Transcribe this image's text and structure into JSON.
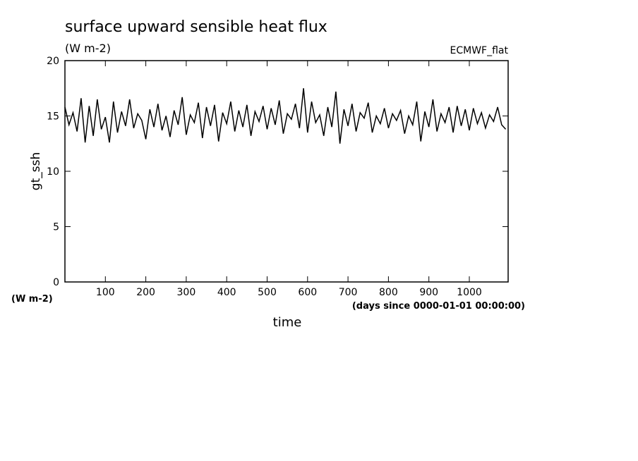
{
  "chart_data": {
    "type": "line",
    "title": "surface upward sensible heat flux",
    "subtitle": "(W m-2)",
    "annotation": "ECMWF_flat",
    "y_label": "gt_ssh",
    "y_unit": "(W m-2)",
    "x_unit": "(days since 0000-01-01 00:00:00)",
    "x_label": "time",
    "color": "#000000",
    "x": [
      0,
      10,
      20,
      30,
      40,
      50,
      60,
      70,
      80,
      90,
      100,
      110,
      120,
      130,
      140,
      150,
      160,
      170,
      180,
      190,
      200,
      210,
      220,
      230,
      240,
      250,
      260,
      270,
      280,
      290,
      300,
      310,
      320,
      330,
      340,
      350,
      360,
      370,
      380,
      390,
      400,
      410,
      420,
      430,
      440,
      450,
      460,
      470,
      480,
      490,
      500,
      510,
      520,
      530,
      540,
      550,
      560,
      570,
      580,
      590,
      600,
      610,
      620,
      630,
      640,
      650,
      660,
      670,
      680,
      690,
      700,
      710,
      720,
      730,
      740,
      750,
      760,
      770,
      780,
      790,
      800,
      810,
      820,
      830,
      840,
      850,
      860,
      870,
      880,
      890,
      900,
      910,
      920,
      930,
      940,
      950,
      960,
      970,
      980,
      990,
      1000,
      1010,
      1020,
      1030,
      1040,
      1050,
      1060,
      1070,
      1080,
      1090
    ],
    "values": [
      15.8,
      14.2,
      15.3,
      13.6,
      16.6,
      12.6,
      15.9,
      13.2,
      16.5,
      13.8,
      14.9,
      12.6,
      16.3,
      13.5,
      15.4,
      14.1,
      16.5,
      13.9,
      15.2,
      14.6,
      12.9,
      15.6,
      14.0,
      16.1,
      13.7,
      15.0,
      13.1,
      15.5,
      14.2,
      16.7,
      13.3,
      15.1,
      14.4,
      16.2,
      13.0,
      15.8,
      14.1,
      16.0,
      12.7,
      15.3,
      14.3,
      16.3,
      13.6,
      15.5,
      14.0,
      16.0,
      13.2,
      15.4,
      14.5,
      15.9,
      13.8,
      15.7,
      14.2,
      16.4,
      13.4,
      15.2,
      14.7,
      16.1,
      13.9,
      17.5,
      13.5,
      16.3,
      14.4,
      15.1,
      13.2,
      15.8,
      14.0,
      17.2,
      12.5,
      15.6,
      14.1,
      16.1,
      13.6,
      15.3,
      14.8,
      16.2,
      13.5,
      15.0,
      14.3,
      15.7,
      13.9,
      15.2,
      14.6,
      15.5,
      13.4,
      15.0,
      14.2,
      16.3,
      12.7,
      15.4,
      14.0,
      16.5,
      13.6,
      15.2,
      14.4,
      15.8,
      13.5,
      15.9,
      14.1,
      15.6,
      13.7,
      15.7,
      14.3,
      15.3,
      13.9,
      15.1,
      14.5,
      15.8,
      14.2,
      13.8
    ],
    "xlim": [
      0,
      1096
    ],
    "ylim": [
      0,
      20
    ],
    "xticks": [
      100,
      200,
      300,
      400,
      500,
      600,
      700,
      800,
      900,
      1000
    ],
    "yticks": [
      0,
      5,
      10,
      15,
      20
    ]
  }
}
